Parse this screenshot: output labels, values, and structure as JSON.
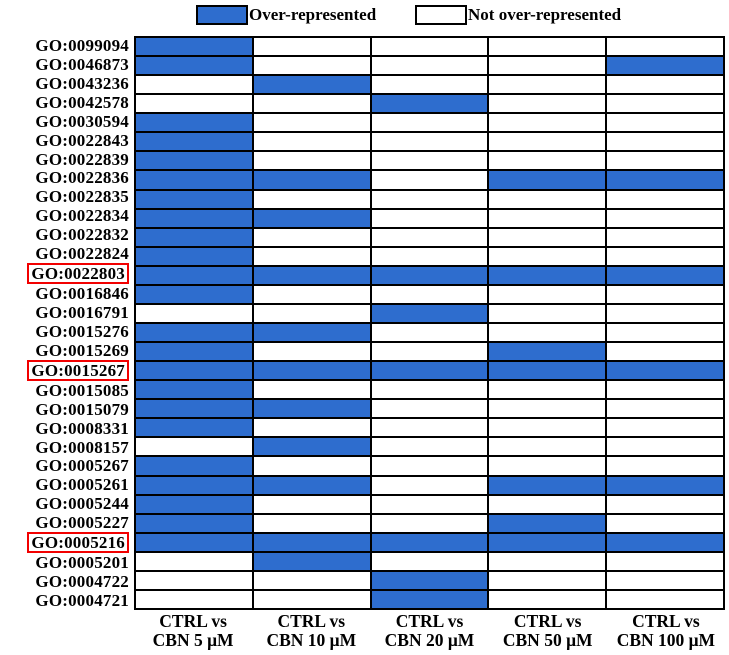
{
  "legend": {
    "items": [
      {
        "label": "Over-represented",
        "swatch": "filled"
      },
      {
        "label": "Not over-represented",
        "swatch": "empty"
      }
    ]
  },
  "colors": {
    "filled": "#2E6DCE",
    "empty": "#FFFFFF",
    "grid_line": "#000000",
    "highlight_box": "#F20000",
    "text": "#000000"
  },
  "chart_data": {
    "type": "heatmap",
    "title": "",
    "value_meaning": {
      "1": "Over-represented",
      "0": "Not over-represented"
    },
    "legend_position": "top",
    "highlight_note": "Rows GO:0022803, GO:0015267 and GO:0005216 are outlined with a red box",
    "columns": [
      {
        "line1": "CTRL vs",
        "line2": "CBN 5 μM"
      },
      {
        "line1": "CTRL vs",
        "line2": "CBN 10 μM"
      },
      {
        "line1": "CTRL vs",
        "line2": "CBN 20 μM"
      },
      {
        "line1": "CTRL vs",
        "line2": "CBN 50 μM"
      },
      {
        "line1": "CTRL vs",
        "line2": "CBN 100 μM"
      }
    ],
    "rows": [
      {
        "id": "GO:0099094",
        "values": [
          1,
          0,
          0,
          0,
          0
        ],
        "highlighted": false
      },
      {
        "id": "GO:0046873",
        "values": [
          1,
          0,
          0,
          0,
          1
        ],
        "highlighted": false
      },
      {
        "id": "GO:0043236",
        "values": [
          0,
          1,
          0,
          0,
          0
        ],
        "highlighted": false
      },
      {
        "id": "GO:0042578",
        "values": [
          0,
          0,
          1,
          0,
          0
        ],
        "highlighted": false
      },
      {
        "id": "GO:0030594",
        "values": [
          1,
          0,
          0,
          0,
          0
        ],
        "highlighted": false
      },
      {
        "id": "GO:0022843",
        "values": [
          1,
          0,
          0,
          0,
          0
        ],
        "highlighted": false
      },
      {
        "id": "GO:0022839",
        "values": [
          1,
          0,
          0,
          0,
          0
        ],
        "highlighted": false
      },
      {
        "id": "GO:0022836",
        "values": [
          1,
          1,
          0,
          1,
          1
        ],
        "highlighted": false
      },
      {
        "id": "GO:0022835",
        "values": [
          1,
          0,
          0,
          0,
          0
        ],
        "highlighted": false
      },
      {
        "id": "GO:0022834",
        "values": [
          1,
          1,
          0,
          0,
          0
        ],
        "highlighted": false
      },
      {
        "id": "GO:0022832",
        "values": [
          1,
          0,
          0,
          0,
          0
        ],
        "highlighted": false
      },
      {
        "id": "GO:0022824",
        "values": [
          1,
          0,
          0,
          0,
          0
        ],
        "highlighted": false
      },
      {
        "id": "GO:0022803",
        "values": [
          1,
          1,
          1,
          1,
          1
        ],
        "highlighted": true
      },
      {
        "id": "GO:0016846",
        "values": [
          1,
          0,
          0,
          0,
          0
        ],
        "highlighted": false
      },
      {
        "id": "GO:0016791",
        "values": [
          0,
          0,
          1,
          0,
          0
        ],
        "highlighted": false
      },
      {
        "id": "GO:0015276",
        "values": [
          1,
          1,
          0,
          0,
          0
        ],
        "highlighted": false
      },
      {
        "id": "GO:0015269",
        "values": [
          1,
          0,
          0,
          1,
          0
        ],
        "highlighted": false
      },
      {
        "id": "GO:0015267",
        "values": [
          1,
          1,
          1,
          1,
          1
        ],
        "highlighted": true
      },
      {
        "id": "GO:0015085",
        "values": [
          1,
          0,
          0,
          0,
          0
        ],
        "highlighted": false
      },
      {
        "id": "GO:0015079",
        "values": [
          1,
          1,
          0,
          0,
          0
        ],
        "highlighted": false
      },
      {
        "id": "GO:0008331",
        "values": [
          1,
          0,
          0,
          0,
          0
        ],
        "highlighted": false
      },
      {
        "id": "GO:0008157",
        "values": [
          0,
          1,
          0,
          0,
          0
        ],
        "highlighted": false
      },
      {
        "id": "GO:0005267",
        "values": [
          1,
          0,
          0,
          0,
          0
        ],
        "highlighted": false
      },
      {
        "id": "GO:0005261",
        "values": [
          1,
          1,
          0,
          1,
          1
        ],
        "highlighted": false
      },
      {
        "id": "GO:0005244",
        "values": [
          1,
          0,
          0,
          0,
          0
        ],
        "highlighted": false
      },
      {
        "id": "GO:0005227",
        "values": [
          1,
          0,
          0,
          1,
          0
        ],
        "highlighted": false
      },
      {
        "id": "GO:0005216",
        "values": [
          1,
          1,
          1,
          1,
          1
        ],
        "highlighted": true
      },
      {
        "id": "GO:0005201",
        "values": [
          0,
          1,
          0,
          0,
          0
        ],
        "highlighted": false
      },
      {
        "id": "GO:0004722",
        "values": [
          0,
          0,
          1,
          0,
          0
        ],
        "highlighted": false
      },
      {
        "id": "GO:0004721",
        "values": [
          0,
          0,
          1,
          0,
          0
        ],
        "highlighted": false
      }
    ]
  }
}
